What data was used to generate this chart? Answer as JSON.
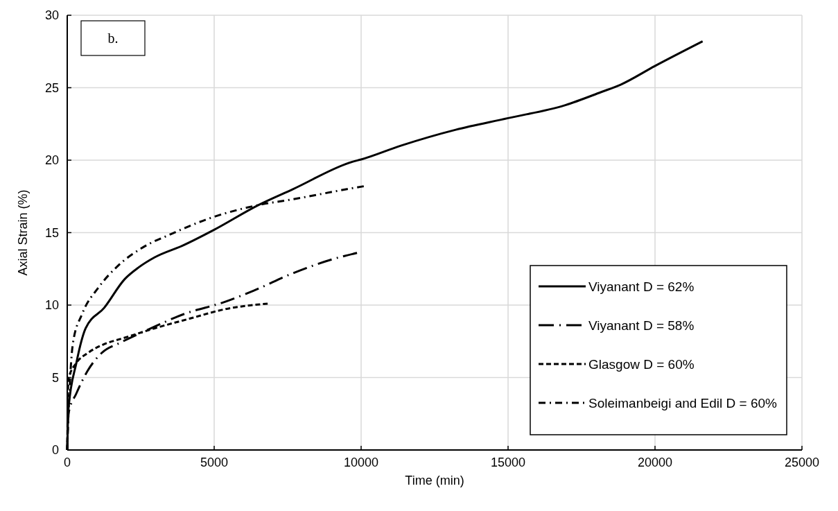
{
  "chart_data": {
    "type": "line",
    "xlabel": "Time (min)",
    "ylabel": "Axial Strain (%)",
    "annotations": [
      "b."
    ],
    "xlim": [
      0,
      25000
    ],
    "xticks": [
      0,
      5000,
      10000,
      15000,
      20000,
      25000
    ],
    "ylim": [
      0,
      30
    ],
    "yticks": [
      0,
      5,
      10,
      15,
      20,
      25,
      30
    ],
    "grid": true,
    "legend": "bottom right",
    "series": [
      {
        "name": "Viyanant D = 62%",
        "color": "#000000",
        "line_style": "solid",
        "x": [
          0,
          40,
          310,
          627,
          1254,
          1960,
          2430,
          2980,
          3920,
          5000,
          6500,
          7680,
          9720,
          10000,
          11350,
          13220,
          15000,
          16950,
          18170,
          18820,
          20000,
          21620
        ],
        "values": [
          0,
          2.8,
          6.0,
          8.4,
          9.8,
          11.8,
          12.6,
          13.3,
          14.1,
          15.2,
          16.9,
          18.0,
          19.9,
          20.05,
          21.0,
          22.1,
          22.9,
          23.8,
          24.7,
          25.2,
          26.5,
          28.2
        ]
      },
      {
        "name": "Viyanant D = 58%",
        "color": "#000000",
        "line_style": "longdashdot",
        "x": [
          0,
          40,
          310,
          705,
          1175,
          1800,
          2740,
          4000,
          5330,
          6350,
          7680,
          9090,
          9860
        ],
        "values": [
          0,
          2.5,
          3.9,
          5.5,
          6.7,
          7.4,
          8.3,
          9.4,
          10.2,
          11.0,
          12.2,
          13.2,
          13.6
        ]
      },
      {
        "name": "Glasgow D = 60%",
        "color": "#000000",
        "line_style": "dashed",
        "x": [
          0,
          40,
          310,
          705,
          1254,
          1880,
          2980,
          4230,
          5330,
          6820
        ],
        "values": [
          0,
          4.9,
          6.0,
          6.7,
          7.3,
          7.7,
          8.4,
          9.1,
          9.7,
          10.1
        ]
      },
      {
        "name": "Soleimanbeigi and Edil D = 60%",
        "color": "#000000",
        "line_style": "dashdot",
        "x": [
          0,
          40,
          196,
          510,
          1060,
          1720,
          2590,
          3530,
          4860,
          6500,
          7680,
          9520,
          10090
        ],
        "values": [
          0,
          2.3,
          7.4,
          9.4,
          11.2,
          12.7,
          14.0,
          14.9,
          16.0,
          16.9,
          17.3,
          18.0,
          18.2
        ]
      }
    ]
  }
}
